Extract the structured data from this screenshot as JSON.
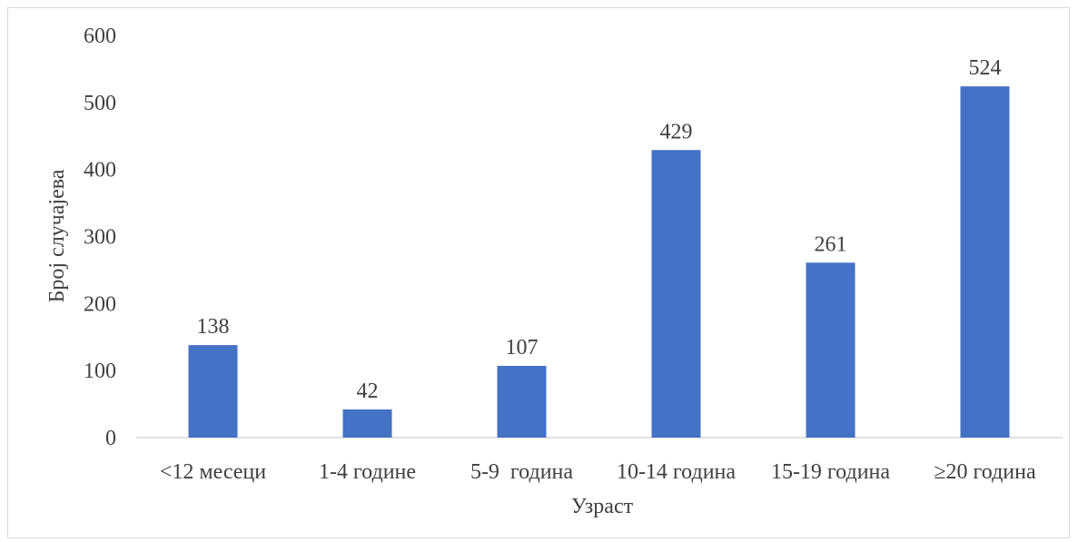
{
  "chart_data": {
    "type": "bar",
    "categories": [
      "<12 месеци",
      "1-4 године",
      "5-9  година",
      "10-14 година",
      "15-19 година",
      "≥20 година"
    ],
    "values": [
      138,
      42,
      107,
      429,
      261,
      524
    ],
    "title": "",
    "xlabel": "Узраст",
    "ylabel": "Број случајева",
    "ylim": [
      0,
      600
    ],
    "yticks": [
      0,
      100,
      200,
      300,
      400,
      500,
      600
    ],
    "grid": false,
    "data_labels": true,
    "bar_color": "#4472C4",
    "text_color": "#404040",
    "axis_color": "#d9d9d9"
  }
}
